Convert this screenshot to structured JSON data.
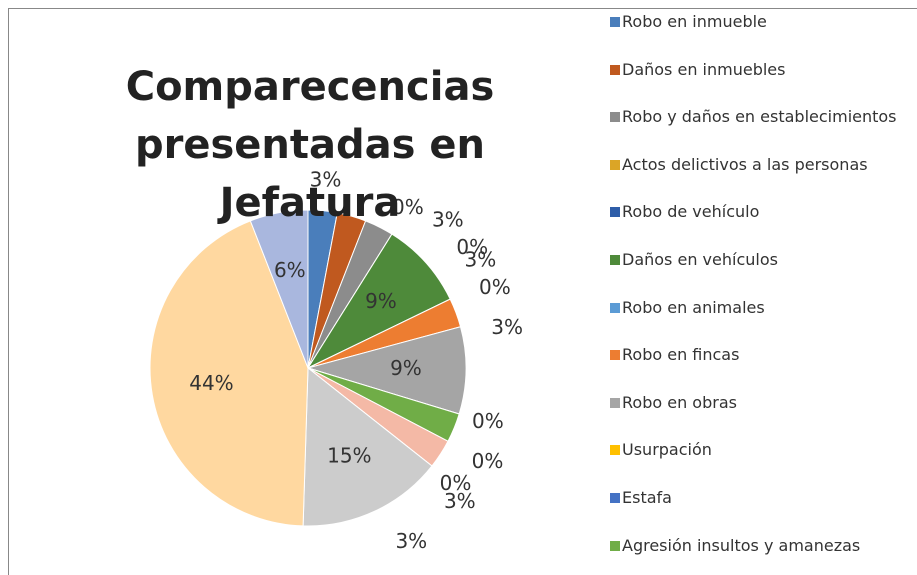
{
  "chart_data": {
    "type": "pie",
    "title": "Comparecencias presentadas en Jefatura",
    "categories": [
      "Robo en inmueble",
      "Daños en inmuebles",
      "Robo y daños en establecimientos",
      "Actos delictivos a las personas",
      "Robo de vehículo",
      "Daños en vehículos",
      "Robo en animales",
      "Robo en fincas",
      "Robo en obras",
      "Usurpación",
      "Estafa",
      "Agresión insultos y amanezas",
      null,
      null,
      null,
      null,
      null
    ],
    "values": [
      3,
      3,
      3,
      0,
      0,
      9,
      0,
      3,
      9,
      0,
      0,
      3,
      3,
      0,
      15,
      44,
      6
    ],
    "value_labels": [
      "3%",
      "3%",
      "3%",
      "0%",
      "0%",
      "9%",
      "0%",
      "3%",
      "9%",
      "0%",
      "0%",
      "3%",
      "3%",
      "0%",
      "15%",
      "44%",
      "6%"
    ],
    "colors": [
      "#4a7ebb",
      "#c0591f",
      "#8c8c8c",
      "#dba526",
      "#2e5da8",
      "#4e8a3a",
      "#5b9bd5",
      "#ed7d31",
      "#a5a5a5",
      "#ffc000",
      "#4472c4",
      "#70ad47",
      "#f4b9a6",
      "#bfbfbf",
      "#cccccc",
      "#ffd8a0",
      "#a9b7de"
    ]
  }
}
